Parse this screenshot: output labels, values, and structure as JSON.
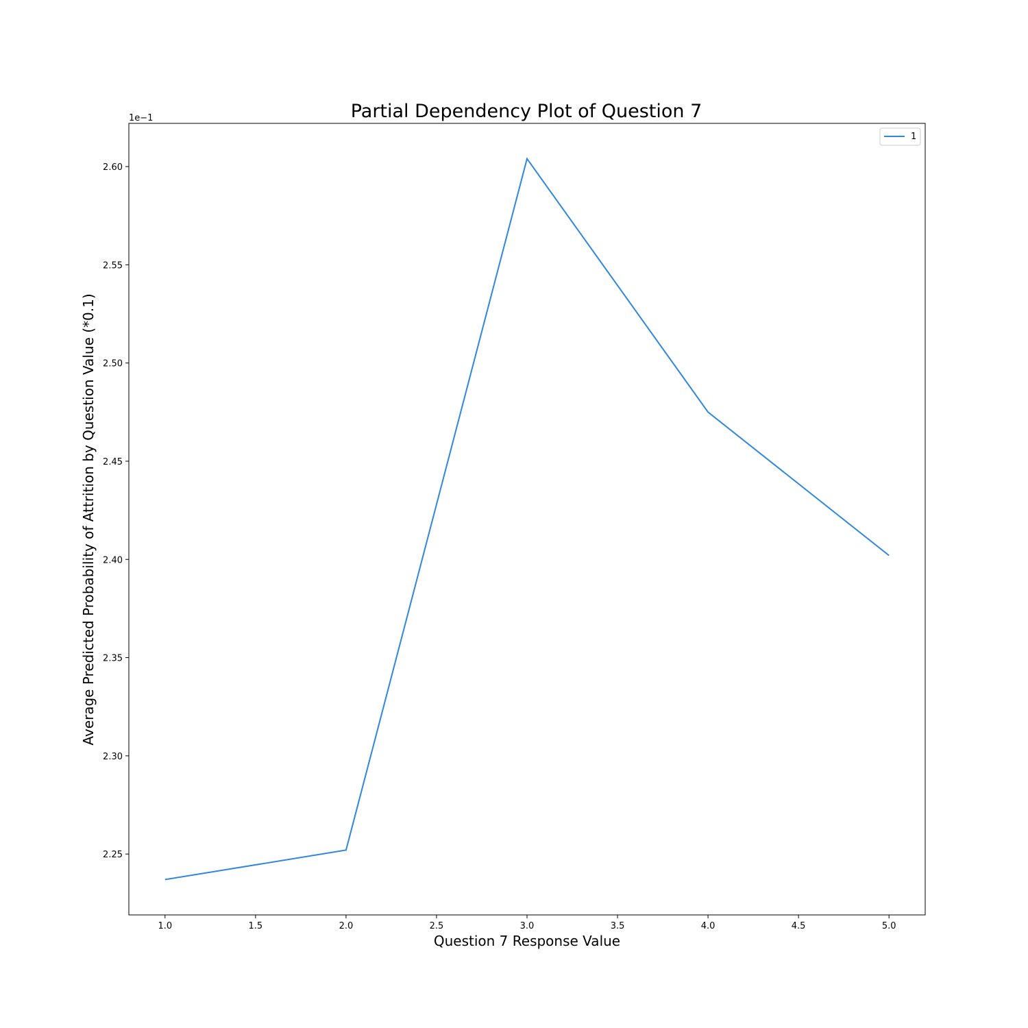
{
  "chart_data": {
    "type": "line",
    "title": "Partial Dependency Plot of Question 7",
    "xlabel": "Question 7 Response Value",
    "ylabel": "Average Predicted Probability of Attrition by Question Value (*0.1)",
    "y_offset_text": "1e−1",
    "x": [
      1.0,
      2.0,
      3.0,
      4.0,
      5.0
    ],
    "series": [
      {
        "name": "1",
        "color": "#2e86de",
        "values": [
          2.237,
          2.252,
          2.604,
          2.475,
          2.402
        ]
      }
    ],
    "xlim": [
      0.8,
      5.2
    ],
    "ylim": [
      2.219,
      2.622
    ],
    "x_ticks": [
      1.0,
      1.5,
      2.0,
      2.5,
      3.0,
      3.5,
      4.0,
      4.5,
      5.0
    ],
    "x_tick_labels": [
      "1.0",
      "1.5",
      "2.0",
      "2.5",
      "3.0",
      "3.5",
      "4.0",
      "4.5",
      "5.0"
    ],
    "y_ticks": [
      2.25,
      2.3,
      2.35,
      2.4,
      2.45,
      2.5,
      2.55,
      2.6
    ],
    "y_tick_labels": [
      "2.25",
      "2.30",
      "2.35",
      "2.40",
      "2.45",
      "2.50",
      "2.55",
      "2.60"
    ],
    "grid": false,
    "legend_position": "top-right"
  }
}
